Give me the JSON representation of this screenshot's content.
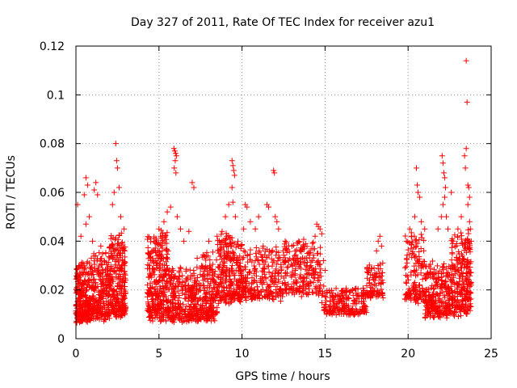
{
  "chart_data": {
    "type": "scatter",
    "title": "Day 327 of 2011, Rate Of TEC Index for receiver azu1",
    "xlabel": "GPS time / hours",
    "ylabel": "ROTI / TECUs",
    "xlim": [
      0,
      25
    ],
    "ylim": [
      0,
      0.12
    ],
    "xticks": [
      "0",
      "5",
      "10",
      "15",
      "20",
      "25"
    ],
    "yticks": [
      "0",
      "0.02",
      "0.04",
      "0.06",
      "0.08",
      "0.1",
      "0.12"
    ],
    "grid": true,
    "marker": "plus",
    "color": "#ff0000",
    "clusters": [
      {
        "x": [
          0.0,
          0.9
        ],
        "y_base": 0.016,
        "y_spread": 0.009,
        "n": 260
      },
      {
        "x": [
          0.9,
          2.0
        ],
        "y_base": 0.018,
        "y_spread": 0.01,
        "n": 240
      },
      {
        "x": [
          2.0,
          3.0
        ],
        "y_base": 0.021,
        "y_spread": 0.012,
        "n": 260
      },
      {
        "x": [
          4.3,
          5.6
        ],
        "y_base": 0.021,
        "y_spread": 0.013,
        "n": 320
      },
      {
        "x": [
          5.6,
          7.5
        ],
        "y_base": 0.015,
        "y_spread": 0.008,
        "n": 300
      },
      {
        "x": [
          7.5,
          8.5
        ],
        "y_base": 0.018,
        "y_spread": 0.01,
        "n": 180
      },
      {
        "x": [
          8.5,
          10.0
        ],
        "y_base": 0.025,
        "y_spread": 0.01,
        "n": 260
      },
      {
        "x": [
          10.0,
          12.5
        ],
        "y_base": 0.024,
        "y_spread": 0.008,
        "n": 240
      },
      {
        "x": [
          12.5,
          14.8
        ],
        "y_base": 0.026,
        "y_spread": 0.008,
        "n": 220
      },
      {
        "x": [
          14.8,
          17.5
        ],
        "y_base": 0.014,
        "y_spread": 0.004,
        "n": 220
      },
      {
        "x": [
          17.5,
          18.5
        ],
        "y_base": 0.022,
        "y_spread": 0.005,
        "n": 90
      },
      {
        "x": [
          19.8,
          21.0
        ],
        "y_base": 0.025,
        "y_spread": 0.01,
        "n": 140
      },
      {
        "x": [
          21.0,
          22.6
        ],
        "y_base": 0.017,
        "y_spread": 0.008,
        "n": 260
      },
      {
        "x": [
          22.6,
          23.8
        ],
        "y_base": 0.022,
        "y_spread": 0.012,
        "n": 260
      }
    ],
    "points": [
      [
        0.1,
        0.055
      ],
      [
        0.2,
        0.03
      ],
      [
        0.3,
        0.042
      ],
      [
        0.5,
        0.059
      ],
      [
        0.6,
        0.066
      ],
      [
        0.7,
        0.063
      ],
      [
        0.6,
        0.047
      ],
      [
        0.8,
        0.05
      ],
      [
        1.1,
        0.061
      ],
      [
        1.2,
        0.064
      ],
      [
        1.3,
        0.059
      ],
      [
        1.0,
        0.04
      ],
      [
        1.5,
        0.038
      ],
      [
        1.8,
        0.035
      ],
      [
        2.4,
        0.08
      ],
      [
        2.45,
        0.073
      ],
      [
        2.5,
        0.07
      ],
      [
        2.3,
        0.06
      ],
      [
        2.2,
        0.055
      ],
      [
        2.6,
        0.062
      ],
      [
        2.7,
        0.05
      ],
      [
        2.9,
        0.045
      ],
      [
        4.5,
        0.041
      ],
      [
        4.7,
        0.04
      ],
      [
        5.0,
        0.045
      ],
      [
        5.3,
        0.048
      ],
      [
        5.5,
        0.052
      ],
      [
        5.7,
        0.054
      ],
      [
        5.2,
        0.036
      ],
      [
        5.9,
        0.078
      ],
      [
        5.95,
        0.077
      ],
      [
        6.0,
        0.076
      ],
      [
        6.05,
        0.075
      ],
      [
        5.98,
        0.073
      ],
      [
        5.92,
        0.07
      ],
      [
        6.02,
        0.068
      ],
      [
        6.1,
        0.05
      ],
      [
        6.3,
        0.045
      ],
      [
        6.5,
        0.04
      ],
      [
        6.8,
        0.044
      ],
      [
        7.0,
        0.064
      ],
      [
        7.1,
        0.062
      ],
      [
        7.3,
        0.033
      ],
      [
        8.0,
        0.04
      ],
      [
        8.5,
        0.042
      ],
      [
        8.8,
        0.044
      ],
      [
        9.0,
        0.05
      ],
      [
        9.2,
        0.055
      ],
      [
        9.4,
        0.073
      ],
      [
        9.45,
        0.071
      ],
      [
        9.5,
        0.069
      ],
      [
        9.55,
        0.067
      ],
      [
        9.4,
        0.062
      ],
      [
        9.45,
        0.056
      ],
      [
        9.6,
        0.05
      ],
      [
        10.2,
        0.055
      ],
      [
        10.3,
        0.054
      ],
      [
        10.1,
        0.045
      ],
      [
        10.5,
        0.048
      ],
      [
        10.8,
        0.045
      ],
      [
        11.0,
        0.05
      ],
      [
        11.5,
        0.055
      ],
      [
        11.6,
        0.054
      ],
      [
        11.9,
        0.069
      ],
      [
        11.95,
        0.068
      ],
      [
        12.0,
        0.05
      ],
      [
        12.1,
        0.048
      ],
      [
        12.2,
        0.045
      ],
      [
        12.6,
        0.04
      ],
      [
        13.0,
        0.038
      ],
      [
        13.5,
        0.036
      ],
      [
        14.0,
        0.035
      ],
      [
        14.5,
        0.047
      ],
      [
        14.6,
        0.046
      ],
      [
        14.7,
        0.045
      ],
      [
        14.8,
        0.043
      ],
      [
        14.4,
        0.042
      ],
      [
        14.9,
        0.032
      ],
      [
        15.0,
        0.028
      ],
      [
        18.2,
        0.04
      ],
      [
        18.3,
        0.042
      ],
      [
        18.1,
        0.036
      ],
      [
        18.4,
        0.038
      ],
      [
        19.9,
        0.04
      ],
      [
        20.1,
        0.045
      ],
      [
        20.2,
        0.042
      ],
      [
        20.5,
        0.07
      ],
      [
        20.55,
        0.063
      ],
      [
        20.6,
        0.06
      ],
      [
        20.7,
        0.058
      ],
      [
        20.4,
        0.05
      ],
      [
        20.8,
        0.048
      ],
      [
        21.0,
        0.045
      ],
      [
        21.8,
        0.045
      ],
      [
        22.0,
        0.05
      ],
      [
        22.1,
        0.055
      ],
      [
        22.2,
        0.058
      ],
      [
        22.25,
        0.062
      ],
      [
        22.3,
        0.05
      ],
      [
        22.05,
        0.075
      ],
      [
        22.1,
        0.072
      ],
      [
        22.15,
        0.068
      ],
      [
        22.2,
        0.066
      ],
      [
        22.4,
        0.045
      ],
      [
        22.6,
        0.06
      ],
      [
        23.0,
        0.045
      ],
      [
        23.2,
        0.05
      ],
      [
        23.4,
        0.075
      ],
      [
        23.45,
        0.07
      ],
      [
        23.5,
        0.078
      ],
      [
        23.55,
        0.097
      ],
      [
        23.5,
        0.114
      ],
      [
        23.6,
        0.063
      ],
      [
        23.65,
        0.062
      ],
      [
        23.7,
        0.058
      ],
      [
        23.6,
        0.055
      ],
      [
        23.7,
        0.048
      ],
      [
        23.75,
        0.045
      ],
      [
        23.8,
        0.04
      ]
    ]
  }
}
